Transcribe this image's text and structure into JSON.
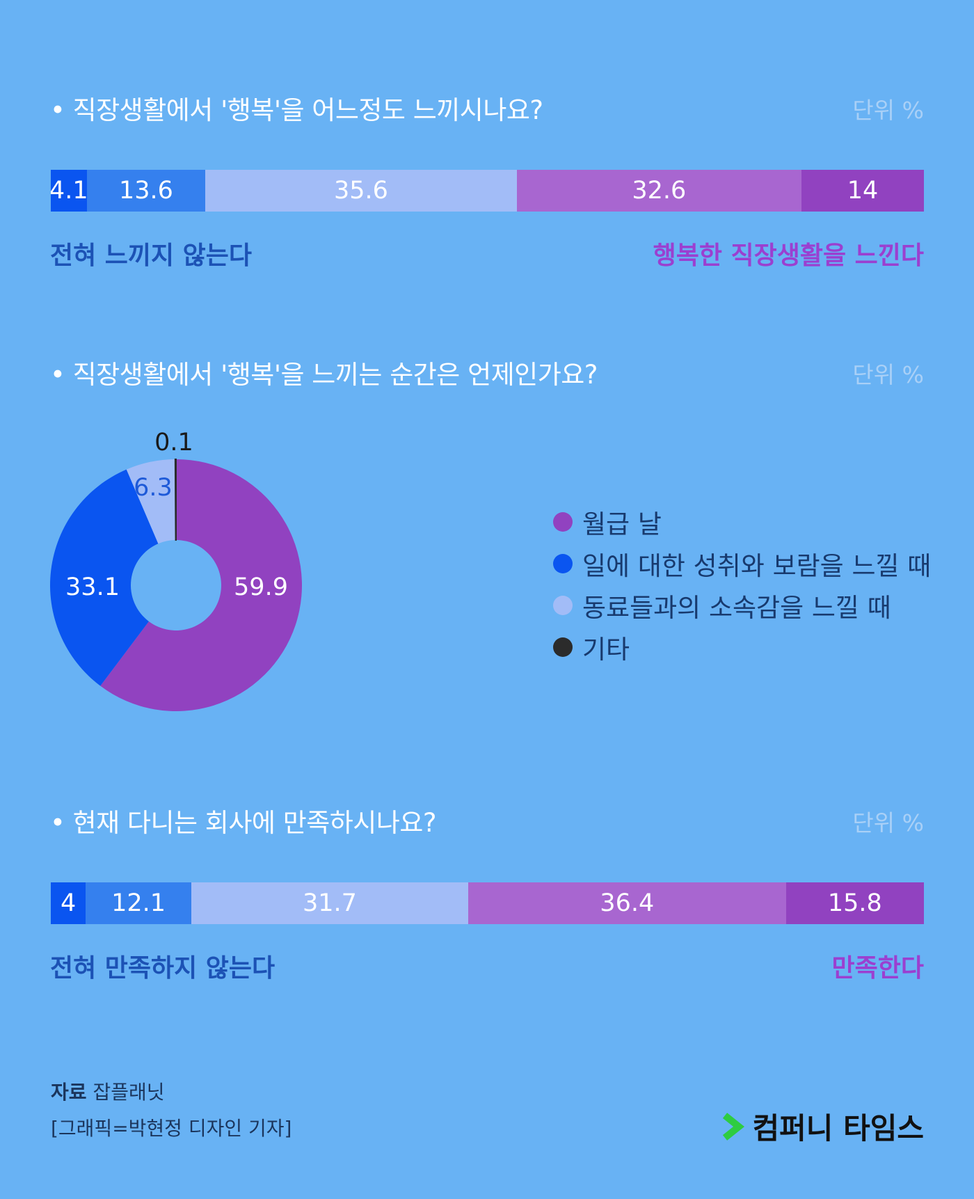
{
  "unit_label": "단위 %",
  "section1": {
    "title": "• 직장생활에서 '행복'을 어느정도 느끼시나요?",
    "left_label": "전혀 느끼지 않는다",
    "right_label": "행복한 직장생활을 느낀다"
  },
  "section2": {
    "title": "• 직장생활에서 '행복'을 느끼는 순간은 언제인가요?"
  },
  "section3": {
    "title": "• 현재 다니는 회사에 만족하시나요?",
    "left_label": "전혀 만족하지 않는다",
    "right_label": "만족한다"
  },
  "colors": {
    "background": "#68b2f4",
    "dark_blue": "#0a55f0",
    "mid_blue": "#3580ee",
    "light_blue": "#a2bcf7",
    "light_purple": "#a866d0",
    "purple": "#9142c0",
    "pie_purple": "#9142c0",
    "pie_blue": "#0a55f0",
    "pie_light": "#a2bcf7",
    "pie_dark": "#2b2b2b",
    "left_label": "#1c52b5",
    "right_label": "#9b3fd0",
    "logo_green": "#2ecc40"
  },
  "chart_data": [
    {
      "type": "bar",
      "stacked": true,
      "orientation": "horizontal",
      "title": "• 직장생활에서 '행복'을 어느정도 느끼시나요?",
      "unit": "단위 %",
      "values": [
        4.1,
        13.6,
        35.6,
        32.6,
        14
      ],
      "labels": [
        "4.1",
        "13.6",
        "35.6",
        "32.6",
        "14"
      ],
      "colors": [
        "#0a55f0",
        "#3580ee",
        "#a2bcf7",
        "#a866d0",
        "#9142c0"
      ]
    },
    {
      "type": "pie",
      "donut": true,
      "title": "• 직장생활에서 '행복'을 느끼는 순간은 언제인가요?",
      "unit": "단위 %",
      "categories": [
        "월급 날",
        "일에 대한 성취와 보람을 느낄 때",
        "동료들과의 소속감을 느낄 때",
        "기타"
      ],
      "values": [
        59.9,
        33.1,
        6.3,
        0.1
      ],
      "labels": [
        "59.9",
        "33.1",
        "6.3",
        "0.1"
      ],
      "colors": [
        "#9142c0",
        "#0a55f0",
        "#a2bcf7",
        "#2b2b2b"
      ],
      "legend": "right"
    },
    {
      "type": "bar",
      "stacked": true,
      "orientation": "horizontal",
      "title": "• 현재 다니는 회사에 만족하시나요?",
      "unit": "단위 %",
      "values": [
        4,
        12.1,
        31.7,
        36.4,
        15.8
      ],
      "labels": [
        "4",
        "12.1",
        "31.7",
        "36.4",
        "15.8"
      ],
      "colors": [
        "#0a55f0",
        "#3580ee",
        "#a2bcf7",
        "#a866d0",
        "#9142c0"
      ]
    }
  ],
  "source": {
    "label": "자료",
    "name": "잡플래닛",
    "credit": "[그래픽=박현정 디자인 기자]"
  },
  "logo": {
    "icon": "chevron-right-icon",
    "text": "컴퍼니 타임스"
  }
}
